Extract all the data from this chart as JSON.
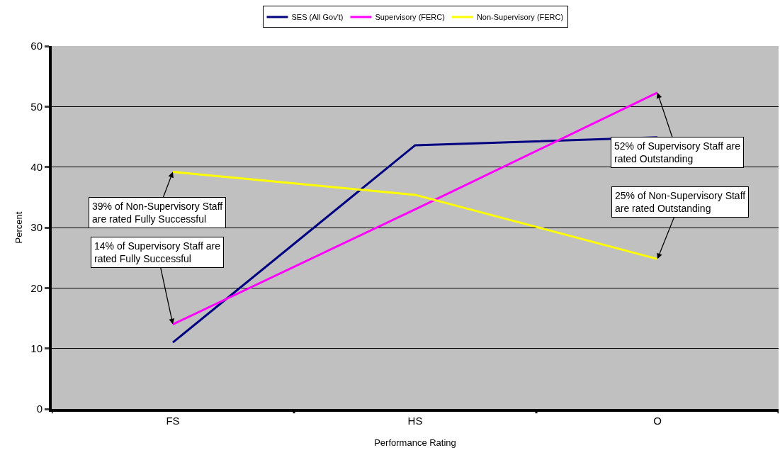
{
  "chart_data": {
    "type": "line",
    "xlabel": "Performance Rating",
    "ylabel": "Percent",
    "categories": [
      "FS",
      "HS",
      "O"
    ],
    "series": [
      {
        "name": "SES (All Gov't)",
        "color": "#000080",
        "values": [
          11.0,
          43.6,
          44.9
        ]
      },
      {
        "name": "Supervisory (FERC)",
        "color": "#ff00ff",
        "values": [
          14.0,
          33.0,
          52.3
        ]
      },
      {
        "name": "Non-Supervisory (FERC)",
        "color": "#ffff00",
        "values": [
          39.2,
          35.4,
          24.8
        ]
      }
    ],
    "ylim": [
      0,
      60
    ],
    "yticks": [
      0,
      10,
      20,
      30,
      40,
      50,
      60
    ],
    "grid": "y",
    "legend": "top",
    "marker": "none",
    "line_style": "solid",
    "annotations": [
      {
        "text": "39% of Non-Supervisory Staff\nare rated Fully Successful",
        "x": "FS",
        "y": 39.2
      },
      {
        "text": "14% of Supervisory Staff are\nrated Fully Successful",
        "x": "FS",
        "y": 14.0
      },
      {
        "text": "52% of Supervisory Staff are\nrated Outstanding",
        "x": "O",
        "y": 52.3
      },
      {
        "text": "25% of Non-Supervisory Staff\nare rated Outstanding",
        "x": "O",
        "y": 24.8
      }
    ]
  }
}
